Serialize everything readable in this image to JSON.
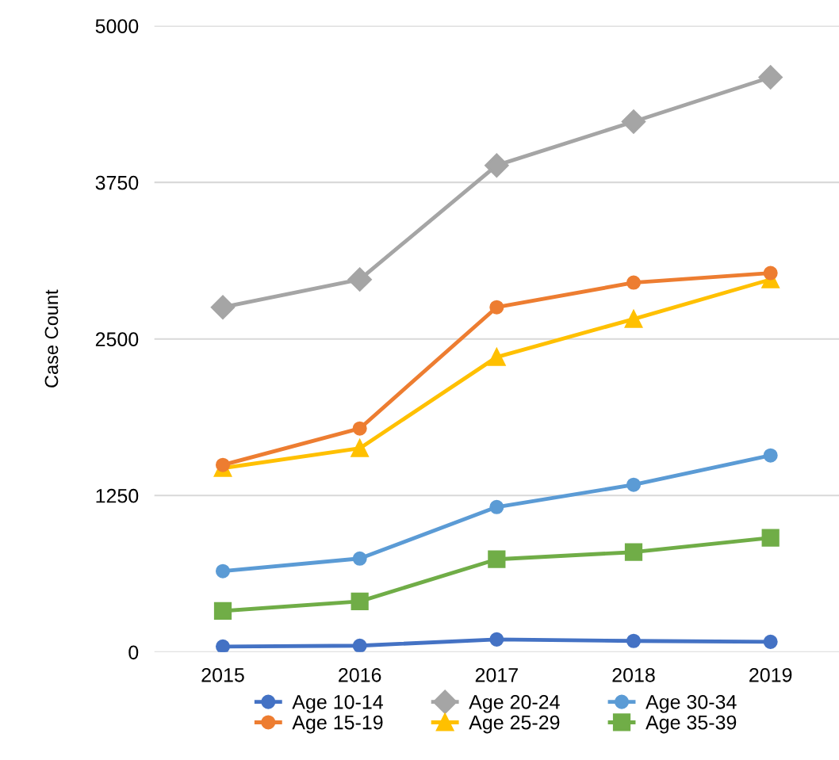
{
  "chart_data": {
    "type": "line",
    "ylabel": "Case Count",
    "categories": [
      "2015",
      "2016",
      "2017",
      "2018",
      "2019"
    ],
    "ylim": [
      0,
      5000
    ],
    "yticks": [
      0,
      1250,
      2500,
      3750,
      5000
    ],
    "grid": "y",
    "legend": "bottom",
    "series": [
      {
        "name": "Age 10-14",
        "color": "#4472c4",
        "marker": "circle",
        "values": [
          44,
          51,
          101,
          89,
          82
        ]
      },
      {
        "name": "Age 15-19",
        "color": "#ed7d31",
        "marker": "circle",
        "values": [
          1494,
          1785,
          2753,
          2950,
          3026
        ]
      },
      {
        "name": "Age 20-24",
        "color": "#a5a5a5",
        "marker": "diamond",
        "values": [
          2753,
          2975,
          3886,
          4235,
          4589
        ]
      },
      {
        "name": "Age 25-29",
        "color": "#ffc000",
        "marker": "triangle",
        "values": [
          1469,
          1627,
          2355,
          2659,
          2975
        ]
      },
      {
        "name": "Age 30-34",
        "color": "#5b9bd5",
        "marker": "circle",
        "values": [
          646,
          747,
          1158,
          1336,
          1570
        ]
      },
      {
        "name": "Age 35-39",
        "color": "#70ad47",
        "marker": "square",
        "values": [
          329,
          405,
          741,
          798,
          912
        ]
      }
    ]
  }
}
